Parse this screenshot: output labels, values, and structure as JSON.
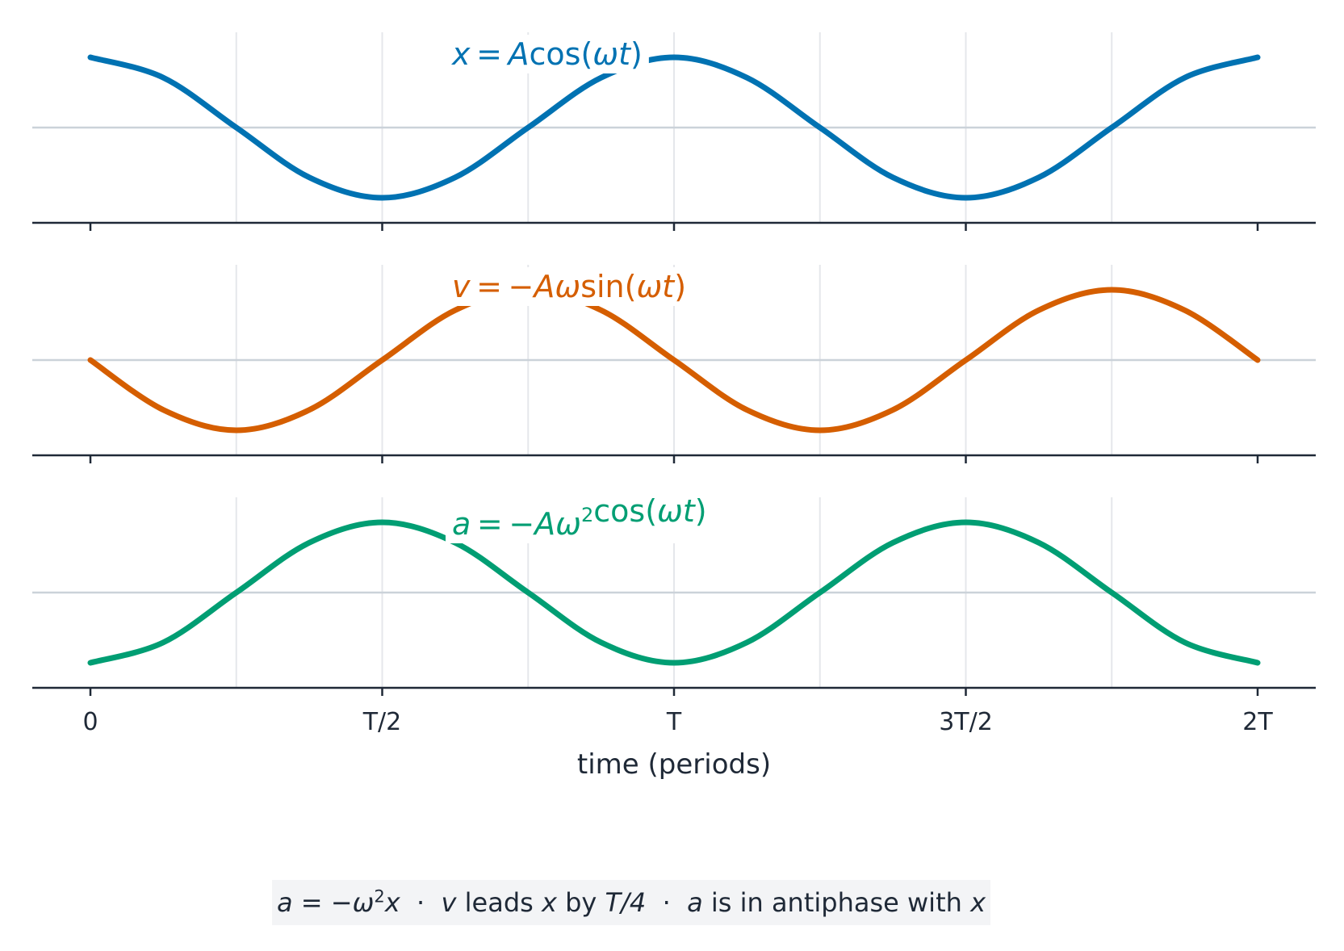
{
  "chart_data": {
    "type": "line",
    "x_unit": "periods",
    "xlabel": "time (periods)",
    "xlim": [
      0,
      2
    ],
    "ylim": [
      -1.05,
      1.05
    ],
    "x_ticks": [
      0,
      0.5,
      1,
      1.5,
      2
    ],
    "x_tick_labels": [
      "0",
      "T/2",
      "T",
      "3T/2",
      "2T"
    ],
    "x_gridlines": [
      0.25,
      0.5,
      0.75,
      1,
      1.25,
      1.5,
      1.75
    ],
    "grid": true,
    "series": [
      {
        "name": "x = Acos(ωt)",
        "color": "#0072b2",
        "x": [
          0,
          0.125,
          0.25,
          0.375,
          0.5,
          0.625,
          0.75,
          0.875,
          1,
          1.125,
          1.25,
          1.375,
          1.5,
          1.625,
          1.75,
          1.875,
          2
        ],
        "values": [
          1,
          0.71,
          0,
          -0.71,
          -1,
          -0.71,
          0,
          0.71,
          1,
          0.71,
          0,
          -0.71,
          -1,
          -0.71,
          0,
          0.71,
          1
        ]
      },
      {
        "name": "v = −Aωsin(ωt)",
        "color": "#d55e00",
        "x": [
          0,
          0.125,
          0.25,
          0.375,
          0.5,
          0.625,
          0.75,
          0.875,
          1,
          1.125,
          1.25,
          1.375,
          1.5,
          1.625,
          1.75,
          1.875,
          2
        ],
        "values": [
          0,
          -0.71,
          -1,
          -0.71,
          0,
          0.71,
          1,
          0.71,
          0,
          -0.71,
          -1,
          -0.71,
          0,
          0.71,
          1,
          0.71,
          0
        ]
      },
      {
        "name": "a = −Aω2cos(ωt)",
        "color": "#009e73",
        "x": [
          0,
          0.125,
          0.25,
          0.375,
          0.5,
          0.625,
          0.75,
          0.875,
          1,
          1.125,
          1.25,
          1.375,
          1.5,
          1.625,
          1.75,
          1.875,
          2
        ],
        "values": [
          -1,
          -0.71,
          0,
          0.71,
          1,
          0.71,
          0,
          -0.71,
          -1,
          -0.71,
          0,
          0.71,
          1,
          0.71,
          0,
          -0.71,
          -1
        ]
      }
    ],
    "panel_labels": [
      {
        "lhs": "x",
        "eq": "=",
        "a": "A",
        "fn": "cos(",
        "arg": "ωt",
        "close": ")"
      },
      {
        "lhs": "v",
        "eq": "=",
        "neg": "−",
        "a": "Aω",
        "fn": "sin(",
        "arg": "ωt",
        "close": ")"
      },
      {
        "lhs": "a",
        "eq": "=",
        "neg": "−",
        "a": "Aω",
        "sup": "2",
        "fn": "cos(",
        "arg": "ωt",
        "close": ")"
      }
    ],
    "annotation": {
      "lhs": "a",
      "eq": " = −",
      "omega": "ω",
      "sup": "2",
      "x1": "x",
      "sep1": "  ·  ",
      "v": "v",
      "leads": " leads ",
      "x2": "x",
      "by": " by ",
      "T4": "T/4",
      "sep2": "  ·  ",
      "a2": "a",
      "anti": " is in antiphase with ",
      "x3": "x"
    }
  }
}
